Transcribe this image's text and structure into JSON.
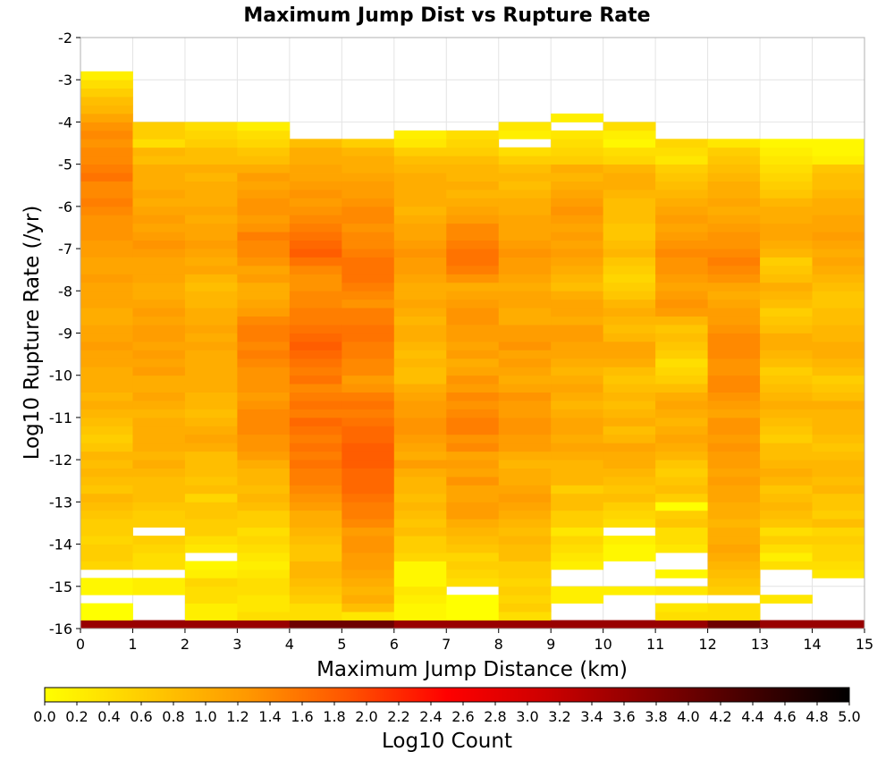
{
  "chart_data": {
    "type": "heatmap",
    "title": "Maximum Jump Dist vs Rupture Rate",
    "xlabel": "Maximum Jump Distance (km)",
    "ylabel": "Log10 Rupture Rate (/yr)",
    "colorbar_label": "Log10 Count",
    "xlim": [
      0,
      15
    ],
    "ylim": [
      -16,
      -2
    ],
    "x_ticks": [
      "0",
      "1",
      "2",
      "3",
      "4",
      "5",
      "6",
      "7",
      "8",
      "9",
      "10",
      "11",
      "12",
      "13",
      "14",
      "15"
    ],
    "y_ticks": [
      "-2",
      "-3",
      "-4",
      "-5",
      "-6",
      "-7",
      "-8",
      "-9",
      "-10",
      "-11",
      "-12",
      "-13",
      "-14",
      "-15",
      "-16"
    ],
    "colorbar_ticks": [
      "0.0",
      "0.2",
      "0.4",
      "0.6",
      "0.8",
      "1.0",
      "1.2",
      "1.4",
      "1.6",
      "1.8",
      "2.0",
      "2.2",
      "2.4",
      "2.6",
      "2.8",
      "3.0",
      "3.2",
      "3.4",
      "3.6",
      "3.8",
      "4.0",
      "4.2",
      "4.4",
      "4.6",
      "4.8",
      "5.0"
    ],
    "color_range": [
      0,
      5
    ],
    "colormap": [
      "#ffff00",
      "#ffcc00",
      "#ff9900",
      "#ff5500",
      "#ff0000",
      "#cc0000",
      "#880000",
      "#440000",
      "#000000"
    ],
    "x_bin_width": 1,
    "y_bin_width": 0.2,
    "y_bin_start": -16,
    "missing_value": null,
    "grid": true,
    "columns": [
      [
        3.6,
        0.0,
        0.0,
        null,
        0.1,
        0.1,
        null,
        0.5,
        0.6,
        0.6,
        0.5,
        0.6,
        0.6,
        0.7,
        0.8,
        0.9,
        0.7,
        0.8,
        0.9,
        0.8,
        0.9,
        0.7,
        0.6,
        0.7,
        0.8,
        0.9,
        1.0,
        0.9,
        1.0,
        1.0,
        1.0,
        1.1,
        1.1,
        1.2,
        1.1,
        1.1,
        1.0,
        1.0,
        1.1,
        1.1,
        1.1,
        1.2,
        1.1,
        1.1,
        1.2,
        1.2,
        1.3,
        1.3,
        1.3,
        1.4,
        1.5,
        1.4,
        1.4,
        1.6,
        1.5,
        1.4,
        1.4,
        1.3,
        1.4,
        1.3,
        1.1,
        0.9,
        0.8,
        0.6,
        0.4,
        0.2,
        null,
        null,
        null,
        null
      ],
      [
        3.6,
        null,
        null,
        null,
        0.2,
        0.2,
        null,
        0.4,
        0.4,
        0.5,
        0.6,
        null,
        0.6,
        0.6,
        0.7,
        0.8,
        0.8,
        0.8,
        0.9,
        1.0,
        0.9,
        1.0,
        1.0,
        1.0,
        1.0,
        0.9,
        1.0,
        1.1,
        1.0,
        1.0,
        1.2,
        1.1,
        1.2,
        1.1,
        1.2,
        1.2,
        1.1,
        1.2,
        1.1,
        1.0,
        1.0,
        1.1,
        1.1,
        1.1,
        1.2,
        1.3,
        1.2,
        1.1,
        1.2,
        1.1,
        1.0,
        1.1,
        1.0,
        1.0,
        1.0,
        0.8,
        0.9,
        0.4,
        0.6,
        0.6,
        null,
        null,
        null,
        null,
        null,
        null,
        null,
        null,
        null,
        null
      ],
      [
        3.6,
        0.2,
        0.2,
        0.4,
        0.4,
        0.5,
        0.2,
        0.1,
        null,
        0.3,
        0.4,
        0.6,
        0.6,
        0.7,
        0.7,
        0.5,
        0.8,
        0.7,
        0.8,
        0.8,
        0.8,
        1.0,
        1.1,
        1.0,
        0.9,
        0.8,
        0.9,
        0.9,
        1.0,
        1.0,
        1.0,
        1.0,
        1.0,
        1.1,
        1.0,
        1.1,
        1.0,
        1.0,
        0.9,
        0.9,
        0.8,
        0.9,
        1.1,
        1.0,
        1.1,
        1.2,
        1.1,
        1.1,
        1.0,
        1.1,
        1.0,
        1.0,
        1.0,
        0.9,
        1.0,
        0.8,
        0.8,
        0.6,
        0.5,
        0.4,
        null,
        null,
        null,
        null,
        null,
        null,
        null,
        null,
        null,
        null
      ],
      [
        3.6,
        0.4,
        0.3,
        0.3,
        0.4,
        0.4,
        0.3,
        0.2,
        0.3,
        0.4,
        0.5,
        0.4,
        0.6,
        0.6,
        0.8,
        0.9,
        0.8,
        0.9,
        0.9,
        1.0,
        1.2,
        1.3,
        1.3,
        1.4,
        1.4,
        1.4,
        1.3,
        1.2,
        1.3,
        1.3,
        1.3,
        1.4,
        1.5,
        1.4,
        1.5,
        1.5,
        1.4,
        1.2,
        1.1,
        1.0,
        1.0,
        1.2,
        1.1,
        1.3,
        1.4,
        1.4,
        1.5,
        1.3,
        1.2,
        1.3,
        1.3,
        1.2,
        1.1,
        1.2,
        1.0,
        0.8,
        0.7,
        0.5,
        0.4,
        0.2,
        null,
        null,
        null,
        null,
        null,
        null,
        null,
        null,
        null,
        null
      ],
      [
        4.0,
        0.4,
        0.4,
        0.6,
        0.7,
        0.8,
        0.9,
        0.9,
        0.7,
        0.7,
        0.8,
        0.9,
        1.0,
        1.0,
        1.2,
        1.3,
        1.4,
        1.5,
        1.5,
        1.6,
        1.5,
        1.6,
        1.5,
        1.6,
        1.7,
        1.5,
        1.6,
        1.5,
        1.4,
        1.6,
        1.5,
        1.6,
        1.7,
        1.8,
        1.7,
        1.6,
        1.5,
        1.5,
        1.4,
        1.4,
        1.3,
        1.3,
        1.4,
        1.6,
        1.8,
        1.7,
        1.6,
        1.5,
        1.4,
        1.3,
        1.2,
        1.3,
        1.2,
        1.1,
        1.1,
        1.0,
        1.0,
        0.8,
        null,
        null,
        null,
        null,
        null,
        null,
        null,
        null,
        null,
        null,
        null,
        null
      ],
      [
        4.0,
        0.3,
        0.8,
        1.0,
        0.9,
        1.0,
        1.1,
        1.2,
        1.2,
        1.3,
        1.3,
        1.2,
        1.4,
        1.5,
        1.5,
        1.6,
        1.7,
        1.7,
        1.7,
        1.8,
        1.8,
        1.8,
        1.7,
        1.7,
        1.6,
        1.5,
        1.6,
        1.5,
        1.3,
        1.2,
        1.4,
        1.4,
        1.5,
        1.5,
        1.6,
        1.6,
        1.5,
        1.5,
        1.3,
        1.4,
        1.5,
        1.6,
        1.6,
        1.6,
        1.5,
        1.4,
        1.4,
        1.3,
        1.4,
        1.4,
        1.3,
        1.2,
        1.2,
        1.1,
        1.0,
        1.0,
        0.9,
        0.6,
        null,
        null,
        null,
        null,
        null,
        null,
        null,
        null,
        null,
        null,
        null,
        null
      ],
      [
        3.6,
        0.1,
        0.1,
        0.2,
        0.3,
        0.1,
        0.1,
        0.1,
        0.5,
        0.6,
        0.6,
        0.8,
        0.7,
        0.8,
        0.9,
        0.8,
        0.9,
        0.9,
        1.0,
        1.2,
        1.0,
        1.1,
        1.2,
        1.3,
        1.3,
        1.2,
        1.2,
        1.1,
        1.0,
        0.8,
        0.8,
        0.9,
        0.8,
        0.9,
        1.0,
        1.0,
        0.9,
        1.0,
        1.1,
        1.0,
        1.0,
        1.1,
        1.2,
        1.2,
        1.3,
        1.2,
        1.1,
        1.1,
        1.0,
        0.9,
        1.0,
        1.0,
        1.0,
        1.0,
        0.9,
        0.8,
        0.6,
        0.3,
        0.2,
        null,
        null,
        null,
        null,
        null,
        null,
        null,
        null,
        null,
        null,
        null
      ],
      [
        3.6,
        0.0,
        0.0,
        0.0,
        null,
        0.4,
        0.5,
        0.6,
        0.5,
        0.7,
        0.8,
        0.9,
        1.0,
        1.2,
        1.2,
        1.1,
        1.1,
        1.3,
        1.1,
        1.2,
        1.1,
        1.4,
        1.3,
        1.5,
        1.5,
        1.4,
        1.3,
        1.4,
        1.2,
        1.3,
        1.1,
        1.0,
        1.2,
        1.1,
        1.2,
        1.2,
        1.3,
        1.3,
        1.2,
        1.1,
        1.0,
        1.3,
        1.5,
        1.6,
        1.6,
        1.5,
        1.4,
        1.4,
        1.2,
        1.1,
        1.0,
        0.9,
        1.0,
        0.9,
        0.9,
        0.8,
        0.6,
        0.5,
        0.4,
        null,
        null,
        null,
        null,
        null,
        null,
        null,
        null,
        null,
        null,
        null
      ],
      [
        3.6,
        0.4,
        0.6,
        0.5,
        0.6,
        0.5,
        0.6,
        0.6,
        0.8,
        0.8,
        0.9,
        0.8,
        0.9,
        1.0,
        1.1,
        1.2,
        1.1,
        1.0,
        1.0,
        0.9,
        1.0,
        1.2,
        1.2,
        1.3,
        1.3,
        1.2,
        1.2,
        1.3,
        1.1,
        1.0,
        1.1,
        1.2,
        1.1,
        1.3,
        1.2,
        1.2,
        1.0,
        1.0,
        1.1,
        1.1,
        1.0,
        1.1,
        1.2,
        1.2,
        1.3,
        1.2,
        1.1,
        1.1,
        1.1,
        1.0,
        1.0,
        0.9,
        0.8,
        0.9,
        0.8,
        0.6,
        0.4,
        null,
        0.2,
        0.3,
        null,
        null,
        null,
        null,
        null,
        null,
        null,
        null,
        null,
        null
      ],
      [
        3.6,
        null,
        null,
        0.2,
        0.2,
        null,
        null,
        0.2,
        0.3,
        0.4,
        0.5,
        0.3,
        0.6,
        0.6,
        0.8,
        0.8,
        0.6,
        0.9,
        0.9,
        0.9,
        1.0,
        1.1,
        1.0,
        1.1,
        1.1,
        1.0,
        0.9,
        1.0,
        1.1,
        1.0,
        0.9,
        1.0,
        1.1,
        1.1,
        1.2,
        1.2,
        1.0,
        1.1,
        1.1,
        1.0,
        0.8,
        0.9,
        1.0,
        1.1,
        1.2,
        1.1,
        1.2,
        1.1,
        1.2,
        1.3,
        1.2,
        1.1,
        1.0,
        0.9,
        1.0,
        0.6,
        0.5,
        0.4,
        0.3,
        null,
        0.2,
        null,
        null,
        null,
        null,
        null,
        null,
        null,
        null,
        null
      ],
      [
        3.6,
        null,
        null,
        null,
        0.2,
        null,
        null,
        null,
        0.1,
        0.1,
        0.2,
        null,
        0.4,
        0.5,
        0.6,
        0.8,
        0.7,
        0.8,
        0.9,
        1.0,
        1.0,
        1.1,
        0.9,
        0.8,
        1.0,
        0.9,
        0.8,
        0.9,
        0.8,
        0.7,
        0.8,
        1.0,
        1.1,
        1.1,
        0.9,
        0.8,
        0.9,
        1.0,
        0.9,
        0.7,
        0.6,
        0.5,
        0.6,
        0.7,
        0.9,
        0.8,
        0.7,
        0.7,
        0.8,
        0.8,
        0.8,
        0.9,
        1.0,
        1.0,
        0.9,
        0.5,
        0.4,
        0.1,
        0.2,
        0.4,
        null,
        null,
        null,
        null,
        null,
        null,
        null,
        null,
        null,
        null
      ],
      [
        3.6,
        0.4,
        0.3,
        null,
        0.3,
        null,
        0.1,
        null,
        null,
        0.3,
        0.4,
        0.4,
        0.7,
        0.6,
        0.0,
        0.6,
        0.8,
        0.7,
        0.6,
        0.7,
        0.9,
        1.0,
        1.1,
        1.0,
        0.9,
        1.0,
        1.1,
        1.0,
        0.8,
        0.6,
        0.5,
        0.4,
        0.6,
        0.7,
        0.8,
        0.7,
        0.9,
        1.2,
        1.3,
        1.2,
        1.1,
        1.2,
        1.3,
        1.3,
        1.4,
        1.3,
        1.2,
        1.1,
        1.2,
        1.1,
        1.0,
        0.9,
        0.8,
        0.7,
        0.6,
        0.3,
        0.4,
        0.5,
        null,
        null,
        null,
        null,
        null,
        null,
        null,
        null,
        null,
        null,
        null,
        null
      ],
      [
        4.0,
        0.4,
        0.4,
        null,
        0.6,
        0.7,
        0.8,
        0.9,
        1.0,
        1.1,
        1.0,
        1.0,
        0.9,
        1.0,
        1.0,
        1.1,
        1.1,
        1.2,
        1.1,
        1.2,
        1.2,
        1.3,
        1.2,
        1.3,
        1.3,
        1.1,
        1.2,
        1.3,
        1.4,
        1.4,
        1.3,
        1.3,
        1.4,
        1.4,
        1.4,
        1.3,
        1.2,
        1.2,
        1.1,
        1.0,
        1.1,
        1.3,
        1.4,
        1.5,
        1.4,
        1.3,
        1.3,
        1.2,
        1.1,
        1.0,
        1.1,
        1.0,
        1.0,
        0.9,
        0.8,
        0.7,
        0.6,
        0.3,
        null,
        null,
        null,
        null,
        null,
        null,
        null,
        null,
        null,
        null,
        null,
        null
      ],
      [
        3.6,
        null,
        null,
        0.3,
        null,
        null,
        null,
        0.4,
        0.2,
        0.4,
        0.6,
        0.4,
        0.7,
        0.8,
        0.9,
        0.8,
        0.7,
        0.9,
        1.0,
        0.9,
        0.8,
        0.8,
        0.6,
        0.7,
        0.8,
        0.9,
        1.0,
        0.9,
        0.8,
        0.7,
        0.6,
        0.8,
        0.9,
        1.0,
        1.0,
        0.8,
        0.7,
        0.6,
        0.8,
        0.9,
        1.0,
        0.8,
        0.7,
        0.6,
        0.9,
        1.0,
        1.1,
        1.1,
        1.0,
        1.0,
        0.9,
        0.7,
        0.6,
        0.5,
        0.4,
        0.3,
        0.2,
        0.1,
        null,
        null,
        null,
        null,
        null,
        null,
        null,
        null,
        null,
        null,
        null,
        null
      ],
      [
        3.6,
        null,
        null,
        null,
        null,
        null,
        0.3,
        0.4,
        0.5,
        0.5,
        0.6,
        0.5,
        0.8,
        0.6,
        0.7,
        0.7,
        0.9,
        0.8,
        0.9,
        0.9,
        0.8,
        0.7,
        0.8,
        0.9,
        0.9,
        0.9,
        1.0,
        0.8,
        0.7,
        0.6,
        0.8,
        0.9,
        1.0,
        1.0,
        0.9,
        0.9,
        0.8,
        0.8,
        0.7,
        0.7,
        0.8,
        0.9,
        1.0,
        1.1,
        1.0,
        1.1,
        1.2,
        1.1,
        1.1,
        1.0,
        1.0,
        0.9,
        0.8,
        0.8,
        0.7,
        0.2,
        0.1,
        0.1,
        null,
        null,
        null,
        null,
        null,
        null,
        null,
        null,
        null,
        null,
        null,
        null
      ]
    ]
  }
}
